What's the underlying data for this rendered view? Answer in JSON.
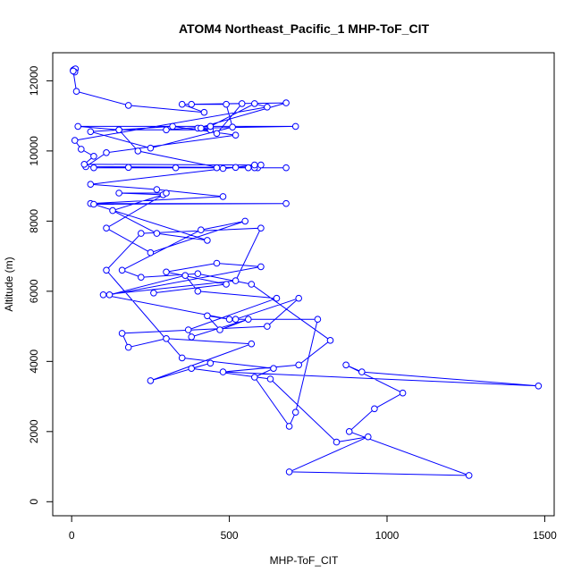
{
  "chart_data": {
    "type": "scatter",
    "title": "ATOM4 Northeast_Pacific_1 MHP-ToF_CIT",
    "xlabel": "MHP-ToF_CIT",
    "ylabel": "Altitude (m)",
    "xlim": [
      -60,
      1530
    ],
    "ylim": [
      -400,
      12800
    ],
    "xticks": [
      0,
      500,
      1000,
      1500
    ],
    "yticks": [
      0,
      2000,
      4000,
      6000,
      8000,
      10000,
      12000
    ],
    "grid": false,
    "legend": "none",
    "color": "#0000ff",
    "series": [
      {
        "x": [
          5,
          8,
          12,
          10,
          5,
          15,
          180,
          420,
          350,
          680,
          400,
          710,
          20,
          150,
          440,
          410,
          460,
          540,
          380,
          490,
          510,
          250,
          60,
          320,
          520,
          110,
          45,
          520,
          560,
          330,
          590,
          680,
          180,
          70,
          460,
          580,
          600,
          480,
          210,
          150,
          300,
          440,
          440,
          580,
          620,
          10,
          30,
          70,
          40,
          580,
          60,
          270,
          480,
          60,
          680,
          70,
          430,
          270,
          130,
          290,
          150,
          300,
          110,
          250,
          550,
          410,
          160,
          220,
          400,
          570,
          820,
          720,
          480,
          1480,
          920,
          870,
          1050,
          960,
          880,
          1260,
          690,
          940,
          840,
          630,
          380,
          440,
          250,
          570,
          300,
          180,
          160,
          620,
          720,
          520,
          780,
          710,
          690,
          580,
          640,
          350,
          110,
          220,
          600,
          520,
          100,
          500,
          430,
          470,
          560,
          380,
          370,
          650,
          400,
          360,
          120,
          600,
          460,
          300,
          490,
          260
        ],
        "y": [
          12300,
          12320,
          12340,
          12250,
          12280,
          11700,
          11300,
          11100,
          11330,
          11370,
          10650,
          10700,
          10700,
          10600,
          10600,
          10650,
          10500,
          11350,
          11330,
          11330,
          10680,
          10080,
          10550,
          10700,
          10450,
          9950,
          9550,
          9530,
          9520,
          9520,
          9520,
          9520,
          9530,
          9520,
          9520,
          9520,
          9600,
          9500,
          10000,
          10600,
          10600,
          10700,
          10700,
          11350,
          11250,
          10300,
          10050,
          9850,
          9620,
          9600,
          9050,
          8900,
          8700,
          8500,
          8500,
          8480,
          7450,
          7650,
          8300,
          8750,
          8800,
          8800,
          7800,
          7100,
          8000,
          7750,
          6600,
          6400,
          6500,
          6200,
          4600,
          3900,
          3700,
          3300,
          3700,
          3900,
          3100,
          2650,
          2000,
          750,
          850,
          1850,
          1700,
          3500,
          3800,
          3950,
          3450,
          4500,
          4650,
          4400,
          4800,
          5000,
          5800,
          5200,
          5200,
          2550,
          2150,
          3550,
          3800,
          4100,
          6600,
          7650,
          7800,
          6300,
          5900,
          5200,
          5300,
          4900,
          5200,
          4700,
          4900,
          5800,
          6000,
          6450,
          5900,
          6700,
          6800,
          6550,
          6200,
          5950
        ]
      }
    ]
  }
}
